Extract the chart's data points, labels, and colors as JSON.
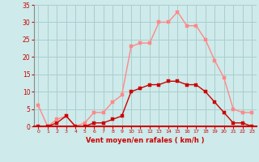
{
  "x": [
    0,
    1,
    2,
    3,
    4,
    5,
    6,
    7,
    8,
    9,
    10,
    11,
    12,
    13,
    14,
    15,
    16,
    17,
    18,
    19,
    20,
    21,
    22,
    23
  ],
  "wind_avg": [
    0,
    0,
    1,
    3,
    0,
    0,
    1,
    1,
    2,
    3,
    10,
    11,
    12,
    12,
    13,
    13,
    12,
    12,
    10,
    7,
    4,
    1,
    1,
    0
  ],
  "wind_gust": [
    6,
    0,
    2,
    3,
    0,
    1,
    4,
    4,
    7,
    9,
    23,
    24,
    24,
    30,
    30,
    33,
    29,
    29,
    25,
    19,
    14,
    5,
    4,
    4
  ],
  "bg_color": "#ceeaea",
  "grid_color": "#aacece",
  "line_avg_color": "#cc0000",
  "line_gust_color": "#ff8888",
  "xlabel": "Vent moyen/en rafales ( km/h )",
  "ylim": [
    0,
    35
  ],
  "xlim": [
    -0.5,
    23.5
  ],
  "yticks": [
    0,
    5,
    10,
    15,
    20,
    25,
    30,
    35
  ],
  "xticks": [
    0,
    1,
    2,
    3,
    4,
    5,
    6,
    7,
    8,
    9,
    10,
    11,
    12,
    13,
    14,
    15,
    16,
    17,
    18,
    19,
    20,
    21,
    22,
    23
  ],
  "marker": "s",
  "marker_size": 2.5,
  "line_width": 1.0
}
